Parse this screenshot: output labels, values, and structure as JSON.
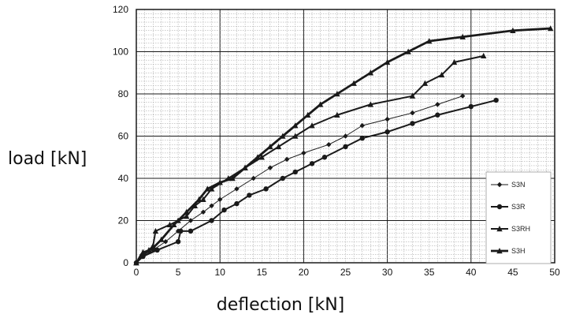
{
  "chart_data": {
    "type": "line",
    "title": "",
    "xlabel": "deflection [kN]",
    "ylabel": "load [kN]",
    "xlim": [
      0,
      50
    ],
    "ylim": [
      0,
      120
    ],
    "x_ticks": [
      0,
      5,
      10,
      15,
      20,
      25,
      30,
      35,
      40,
      45,
      50
    ],
    "y_ticks": [
      0,
      20,
      40,
      60,
      80,
      100,
      120
    ],
    "grid": true,
    "legend_position": "right",
    "series": [
      {
        "name": "S3N",
        "marker": "diamond",
        "line_weight": "thin",
        "points": [
          [
            0,
            0
          ],
          [
            0.8,
            3
          ],
          [
            2,
            6
          ],
          [
            3.5,
            10
          ],
          [
            5,
            15
          ],
          [
            6.5,
            20
          ],
          [
            8,
            24
          ],
          [
            9,
            27
          ],
          [
            10,
            30
          ],
          [
            12,
            35
          ],
          [
            14,
            40
          ],
          [
            16,
            45
          ],
          [
            18,
            49
          ],
          [
            20,
            52
          ],
          [
            23,
            56
          ],
          [
            25,
            60
          ],
          [
            27,
            65
          ],
          [
            30,
            68
          ],
          [
            33,
            71
          ],
          [
            36,
            75
          ],
          [
            39,
            79
          ]
        ]
      },
      {
        "name": "S3R",
        "marker": "circle",
        "line_weight": "medium",
        "points": [
          [
            0,
            0
          ],
          [
            0.8,
            3
          ],
          [
            2.5,
            6
          ],
          [
            5,
            10
          ],
          [
            5.3,
            15
          ],
          [
            6.5,
            15
          ],
          [
            9,
            20
          ],
          [
            10.5,
            25
          ],
          [
            12,
            28
          ],
          [
            13.5,
            32
          ],
          [
            15.5,
            35
          ],
          [
            17.5,
            40
          ],
          [
            19,
            43
          ],
          [
            21,
            47
          ],
          [
            22.5,
            50
          ],
          [
            25,
            55
          ],
          [
            27,
            59
          ],
          [
            30,
            62
          ],
          [
            33,
            66
          ],
          [
            36,
            70
          ],
          [
            40,
            74
          ],
          [
            43,
            77
          ]
        ]
      },
      {
        "name": "S3RH",
        "marker": "triangle",
        "line_weight": "medium",
        "points": [
          [
            0,
            0
          ],
          [
            0.8,
            5
          ],
          [
            1.5,
            6
          ],
          [
            2,
            8
          ],
          [
            2.3,
            15
          ],
          [
            4,
            18
          ],
          [
            5,
            20
          ],
          [
            6,
            22
          ],
          [
            7,
            27
          ],
          [
            8,
            30
          ],
          [
            9,
            35
          ],
          [
            11,
            40
          ],
          [
            13,
            45
          ],
          [
            15,
            50
          ],
          [
            17,
            55
          ],
          [
            19,
            60
          ],
          [
            21,
            65
          ],
          [
            24,
            70
          ],
          [
            28,
            75
          ],
          [
            33,
            79
          ],
          [
            34.5,
            85
          ],
          [
            36.5,
            89
          ],
          [
            38,
            95
          ],
          [
            41.5,
            98
          ]
        ]
      },
      {
        "name": "S3H",
        "marker": "triangle",
        "line_weight": "thick",
        "points": [
          [
            0,
            0
          ],
          [
            0.5,
            3
          ],
          [
            2,
            7
          ],
          [
            3,
            11
          ],
          [
            4.5,
            18
          ],
          [
            6,
            24
          ],
          [
            7.5,
            30
          ],
          [
            8.5,
            35
          ],
          [
            10,
            38
          ],
          [
            11.5,
            40
          ],
          [
            13,
            45
          ],
          [
            14.5,
            50
          ],
          [
            16,
            55
          ],
          [
            17.5,
            60
          ],
          [
            19,
            65
          ],
          [
            20.5,
            70
          ],
          [
            22,
            75
          ],
          [
            24,
            80
          ],
          [
            26,
            85
          ],
          [
            28,
            90
          ],
          [
            30,
            95
          ],
          [
            32.5,
            100
          ],
          [
            35,
            105
          ],
          [
            39,
            107
          ],
          [
            45,
            110
          ],
          [
            49.5,
            111
          ]
        ]
      }
    ]
  },
  "colors": {
    "line": "#1a1a1a",
    "grid_minor": "#9a9a9a",
    "grid_major": "#1a1a1a",
    "background": "#ffffff"
  }
}
